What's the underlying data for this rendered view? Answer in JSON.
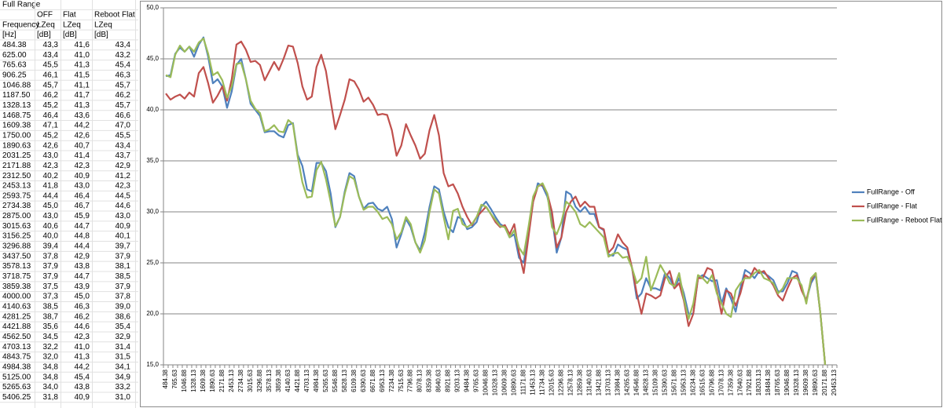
{
  "table": {
    "title": "Full Range",
    "columns": [
      "OFF",
      "Flat",
      "Reboot Flat"
    ],
    "header_rows": [
      [
        "Frequency",
        "LZeq",
        "LZeq",
        "LZeq"
      ],
      [
        "[Hz]",
        "[dB]",
        "[dB]",
        "[dB]"
      ]
    ],
    "rows": [
      [
        "484.38",
        "43,3",
        "41,6",
        "43,4"
      ],
      [
        "625.00",
        "43,4",
        "41,0",
        "43,2"
      ],
      [
        "765.63",
        "45,5",
        "41,3",
        "45,4"
      ],
      [
        "906.25",
        "46,1",
        "41,5",
        "46,3"
      ],
      [
        "1046.88",
        "45,7",
        "41,1",
        "45,7"
      ],
      [
        "1187.50",
        "46,2",
        "41,7",
        "46,2"
      ],
      [
        "1328.13",
        "45,2",
        "41,3",
        "45,7"
      ],
      [
        "1468.75",
        "46,4",
        "43,6",
        "46,6"
      ],
      [
        "1609.38",
        "47,1",
        "44,2",
        "47,0"
      ],
      [
        "1750.00",
        "45,2",
        "42,6",
        "45,5"
      ],
      [
        "1890.63",
        "42,6",
        "40,7",
        "43,4"
      ],
      [
        "2031.25",
        "43,0",
        "41,4",
        "43,7"
      ],
      [
        "2171.88",
        "42,3",
        "42,3",
        "42,9"
      ],
      [
        "2312.50",
        "40,2",
        "40,9",
        "41,2"
      ],
      [
        "2453.13",
        "41,8",
        "43,0",
        "42,3"
      ],
      [
        "2593.75",
        "44,4",
        "46,4",
        "44,5"
      ],
      [
        "2734.38",
        "45,0",
        "46,7",
        "44,6"
      ],
      [
        "2875.00",
        "43,0",
        "45,9",
        "43,0"
      ],
      [
        "3015.63",
        "40,6",
        "44,7",
        "40,9"
      ],
      [
        "3156.25",
        "40,0",
        "44,8",
        "40,1"
      ],
      [
        "3296.88",
        "39,4",
        "44,4",
        "39,7"
      ],
      [
        "3437.50",
        "37,8",
        "42,9",
        "37,9"
      ],
      [
        "3578.13",
        "37,9",
        "43,8",
        "38,1"
      ],
      [
        "3718.75",
        "37,9",
        "44,7",
        "38,5"
      ],
      [
        "3859.38",
        "37,5",
        "43,9",
        "37,9"
      ],
      [
        "4000.00",
        "37,3",
        "45,0",
        "37,8"
      ],
      [
        "4140.63",
        "38,5",
        "46,3",
        "39,0"
      ],
      [
        "4281.25",
        "38,7",
        "46,2",
        "38,6"
      ],
      [
        "4421.88",
        "35,6",
        "44,6",
        "35,4"
      ],
      [
        "4562.50",
        "34,5",
        "42,3",
        "32,9"
      ],
      [
        "4703.13",
        "32,2",
        "41,0",
        "31,4"
      ],
      [
        "4843.75",
        "32,0",
        "41,3",
        "31,5"
      ],
      [
        "4984.38",
        "34,8",
        "44,2",
        "34,1"
      ],
      [
        "5125.00",
        "34,8",
        "45,4",
        "34,9"
      ],
      [
        "5265.63",
        "34,0",
        "43,8",
        "33,2"
      ],
      [
        "5406.25",
        "31,8",
        "40,9",
        "31,0"
      ]
    ]
  },
  "chart_data": {
    "type": "line",
    "legend": "right",
    "grid": true,
    "ylim": [
      15,
      50
    ],
    "yticks": [
      {
        "value": 15,
        "label": "15,0"
      },
      {
        "value": 20,
        "label": "20,0"
      },
      {
        "value": 25,
        "label": "25,0"
      },
      {
        "value": 30,
        "label": "30,0"
      },
      {
        "value": 35,
        "label": "35,0"
      },
      {
        "value": 40,
        "label": "40,0"
      },
      {
        "value": 45,
        "label": "45,0"
      },
      {
        "value": 50,
        "label": "50,0"
      }
    ],
    "categories": [
      "484.38",
      null,
      "765.63",
      null,
      "1046.88",
      null,
      "1328.13",
      null,
      "1609.38",
      null,
      "1890.63",
      null,
      "2171.88",
      null,
      "2453.13",
      null,
      "2734.38",
      null,
      "3015.63",
      null,
      "3296.88",
      null,
      "3578.13",
      null,
      "3859.38",
      null,
      "4140.63",
      null,
      "4421.88",
      null,
      "4703.13",
      null,
      "4984.38",
      null,
      "5265.63",
      null,
      "5546.88",
      null,
      "5828.13",
      null,
      "6109.38",
      null,
      "6390.63",
      null,
      "6671.88",
      null,
      "6953.13",
      null,
      "7234.38",
      null,
      "7515.63",
      null,
      "7796.88",
      null,
      "8078.13",
      null,
      "8359.38",
      null,
      "8640.63",
      null,
      "8921.88",
      null,
      "9203.13",
      null,
      "9484.38",
      null,
      "9765.63",
      null,
      "10046.88",
      null,
      "10328.13",
      null,
      "10609.38",
      null,
      "10890.63",
      null,
      "11171.88",
      null,
      "11453.13",
      null,
      "11734.38",
      null,
      "12015.63",
      null,
      "12296.88",
      null,
      "12578.13",
      null,
      "12859.38",
      null,
      "13140.63",
      null,
      "13421.88",
      null,
      "13703.13",
      null,
      "13984.38",
      null,
      "14265.63",
      null,
      "14546.88",
      null,
      "14828.13",
      null,
      "15109.38",
      null,
      "15390.63",
      null,
      "15671.88",
      null,
      "15953.13",
      null,
      "16234.38",
      null,
      "16515.63",
      null,
      "16796.88",
      null,
      "17078.13",
      null,
      "17359.38",
      null,
      "17640.63",
      null,
      "17921.88",
      null,
      "18203.13",
      null,
      "18484.38",
      null,
      "18765.63",
      null,
      "19046.88",
      null,
      "19328.13",
      null,
      "19609.38",
      null,
      "19890.63",
      null,
      "20171.88",
      null,
      "20453.13"
    ],
    "series": [
      {
        "name": "FullRange - Off",
        "color": "#4f81bd",
        "values": [
          43.3,
          43.4,
          45.5,
          46.1,
          45.7,
          46.2,
          45.2,
          46.4,
          47.1,
          45.2,
          42.6,
          43.0,
          42.3,
          40.2,
          41.8,
          44.4,
          45.0,
          43.0,
          40.6,
          40.0,
          39.4,
          37.8,
          37.9,
          37.9,
          37.5,
          37.3,
          38.5,
          38.7,
          35.6,
          34.5,
          32.2,
          32.0,
          34.8,
          34.8,
          34.0,
          31.8,
          28.5,
          29.5,
          32.0,
          33.8,
          33.5,
          31.5,
          30.3,
          30.8,
          30.9,
          30.3,
          30.1,
          30.5,
          29.3,
          26.5,
          27.8,
          29.3,
          28.5,
          27.0,
          26.2,
          28.0,
          30.5,
          32.5,
          32.2,
          30.0,
          28.5,
          28.0,
          29.5,
          29.3,
          28.3,
          28.5,
          29.0,
          30.5,
          31.0,
          30.3,
          29.5,
          28.8,
          28.5,
          27.5,
          27.8,
          25.5,
          25.0,
          28.0,
          31.0,
          32.8,
          32.5,
          31.5,
          29.5,
          26.0,
          27.5,
          32.0,
          31.7,
          30.5,
          30.0,
          30.5,
          29.8,
          29.8,
          28.5,
          28.2,
          25.8,
          25.7,
          26.8,
          26.5,
          26.3,
          24.5,
          21.5,
          22.0,
          23.5,
          22.5,
          22.5,
          22.3,
          24.0,
          23.5,
          22.5,
          23.5,
          22.0,
          20.0,
          20.0,
          23.5,
          23.8,
          23.5,
          23.2,
          23.3,
          21.0,
          22.5,
          21.5,
          20.2,
          22.5,
          24.3,
          24.0,
          23.5,
          24.2,
          24.0,
          23.7,
          23.3,
          22.2,
          22.2,
          23.0,
          24.2,
          24.0,
          22.5,
          21.3,
          23.0,
          23.8,
          20.0,
          15.0,
          null,
          null
        ]
      },
      {
        "name": "FullRange - Flat",
        "color": "#c0504d",
        "values": [
          41.6,
          41.0,
          41.3,
          41.5,
          41.1,
          41.7,
          41.3,
          43.6,
          44.2,
          42.6,
          40.7,
          41.4,
          42.3,
          40.9,
          43.0,
          46.4,
          46.7,
          45.9,
          44.7,
          44.8,
          44.4,
          42.9,
          43.8,
          44.7,
          43.9,
          45.0,
          46.3,
          46.2,
          44.6,
          42.3,
          41.0,
          41.3,
          44.2,
          45.4,
          43.8,
          40.9,
          38.1,
          39.5,
          41.0,
          43.0,
          42.8,
          42.0,
          40.8,
          41.2,
          40.5,
          39.5,
          39.6,
          39.5,
          38.0,
          35.5,
          36.5,
          38.6,
          37.5,
          36.5,
          35.2,
          35.7,
          38.0,
          39.5,
          37.5,
          33.8,
          32.5,
          32.7,
          31.8,
          30.5,
          29.5,
          28.7,
          29.5,
          30.0,
          30.5,
          29.8,
          29.0,
          28.5,
          28.7,
          27.8,
          28.8,
          26.0,
          24.0,
          27.5,
          31.0,
          32.5,
          32.7,
          31.8,
          30.0,
          26.5,
          27.5,
          30.0,
          31.0,
          31.5,
          30.5,
          31.0,
          30.5,
          30.5,
          28.5,
          28.3,
          26.0,
          26.5,
          27.8,
          27.0,
          26.5,
          24.5,
          22.0,
          20.0,
          22.0,
          21.8,
          21.5,
          21.8,
          23.5,
          24.2,
          22.5,
          23.0,
          21.3,
          18.8,
          20.0,
          23.5,
          23.5,
          24.5,
          24.3,
          22.3,
          20.0,
          22.3,
          22.0,
          20.8,
          22.0,
          23.8,
          23.5,
          24.5,
          24.0,
          24.2,
          23.5,
          22.8,
          21.8,
          21.3,
          22.5,
          23.5,
          23.8,
          22.3,
          21.3,
          23.3,
          24.0,
          20.0,
          15.0,
          null,
          null
        ]
      },
      {
        "name": "FullRange - Reboot Flat",
        "color": "#9bbb59",
        "values": [
          43.4,
          43.2,
          45.4,
          46.3,
          45.7,
          46.2,
          45.7,
          46.6,
          47.0,
          45.5,
          43.4,
          43.7,
          42.9,
          41.2,
          42.3,
          44.5,
          44.6,
          43.0,
          40.9,
          40.1,
          39.7,
          37.9,
          38.1,
          38.5,
          37.9,
          37.8,
          39.0,
          38.6,
          35.4,
          32.9,
          31.4,
          31.5,
          34.1,
          34.9,
          33.2,
          31.0,
          28.6,
          29.5,
          31.8,
          33.5,
          33.2,
          31.5,
          30.2,
          30.5,
          30.5,
          30.0,
          29.3,
          29.5,
          28.8,
          27.3,
          28.0,
          29.5,
          28.8,
          27.0,
          26.0,
          27.2,
          30.0,
          32.2,
          31.8,
          29.5,
          27.3,
          30.1,
          30.3,
          28.8,
          28.5,
          28.8,
          29.5,
          30.7,
          30.5,
          29.8,
          29.2,
          28.6,
          28.5,
          27.5,
          28.2,
          26.5,
          25.8,
          28.5,
          31.5,
          32.5,
          32.8,
          31.8,
          28.5,
          27.8,
          29.0,
          31.0,
          30.6,
          30.0,
          28.8,
          28.5,
          29.0,
          28.5,
          28.0,
          27.5,
          25.6,
          25.9,
          26.0,
          25.5,
          25.6,
          24.5,
          23.0,
          23.5,
          25.6,
          22.3,
          23.5,
          24.8,
          24.0,
          23.0,
          22.7,
          24.0,
          21.5,
          19.5,
          21.0,
          23.8,
          23.5,
          23.0,
          23.8,
          22.0,
          21.0,
          20.0,
          19.7,
          22.3,
          23.0,
          23.5,
          23.5,
          24.0,
          24.3,
          23.5,
          23.3,
          23.0,
          22.0,
          22.5,
          23.5,
          23.5,
          23.5,
          22.8,
          21.0,
          23.5,
          24.0,
          20.0,
          15.0,
          null,
          null
        ]
      }
    ]
  }
}
